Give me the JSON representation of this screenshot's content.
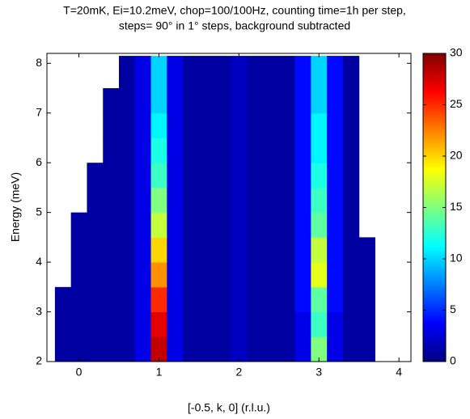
{
  "chart_data": {
    "type": "heatmap",
    "title": [
      "T=20mK, Ei=10.2meV, chop=100/100Hz, counting time=1h per step,",
      "steps= 90° in 1° steps, background subtracted"
    ],
    "x_label": "[-0.5, k, 0] (r.l.u.)",
    "y_label": "Energy (meV)",
    "colormap": "jet",
    "xbins": [
      -0.3,
      -0.1,
      0.1,
      0.3,
      0.5,
      0.7,
      0.9,
      1.1,
      1.3,
      1.5,
      1.7,
      1.9,
      2.1,
      2.3,
      2.5,
      2.7,
      2.9,
      3.1,
      3.3,
      3.5,
      3.7
    ],
    "ybins": [
      2,
      2.5,
      3,
      3.5,
      4,
      4.5,
      5,
      5.5,
      6,
      6.5,
      7,
      7.5,
      8.15
    ],
    "z": [
      [
        1,
        1,
        1,
        1,
        1,
        3,
        28,
        3,
        1,
        1,
        1,
        2,
        1,
        1,
        1,
        3,
        15,
        3,
        1,
        1
      ],
      [
        1,
        1,
        1,
        1,
        1,
        3,
        27,
        3,
        1,
        1,
        1,
        2,
        1,
        1,
        1,
        3,
        13,
        3,
        1,
        1
      ],
      [
        1,
        1,
        1,
        1,
        1,
        3,
        25,
        3,
        1,
        1,
        1,
        2,
        1,
        1,
        1,
        4,
        14,
        4,
        1,
        1
      ],
      [
        null,
        1,
        1,
        1,
        1,
        3,
        22,
        3,
        1,
        1,
        1,
        2,
        1,
        1,
        1,
        4,
        18,
        4,
        1,
        1
      ],
      [
        null,
        1,
        1,
        1,
        1,
        3,
        20,
        3,
        1,
        1,
        1,
        2,
        1,
        1,
        1,
        4,
        17,
        4,
        1,
        1
      ],
      [
        null,
        1,
        1,
        1,
        1,
        3,
        17,
        3,
        1,
        1,
        1,
        2,
        1,
        1,
        1,
        4,
        14,
        4,
        1,
        null
      ],
      [
        null,
        null,
        1,
        1,
        1,
        3,
        15,
        3,
        1,
        1,
        1,
        2,
        1,
        1,
        1,
        4,
        13,
        4,
        1,
        null
      ],
      [
        null,
        null,
        1,
        1,
        1,
        3,
        13,
        3,
        1,
        1,
        1,
        2,
        1,
        1,
        1,
        4,
        12,
        4,
        1,
        null
      ],
      [
        null,
        null,
        null,
        1,
        1,
        3,
        12,
        3,
        1,
        1,
        1,
        2,
        1,
        1,
        1,
        4,
        11,
        4,
        1,
        null
      ],
      [
        null,
        null,
        null,
        1,
        1,
        3,
        11,
        3,
        1,
        1,
        1,
        2,
        1,
        1,
        1,
        4,
        11,
        4,
        1,
        null
      ],
      [
        null,
        null,
        null,
        1,
        1,
        3,
        10,
        3,
        1,
        1,
        1,
        2,
        1,
        1,
        1,
        4,
        10,
        4,
        1,
        null
      ],
      [
        null,
        null,
        null,
        null,
        1,
        3,
        10,
        3,
        1,
        1,
        1,
        2,
        1,
        1,
        1,
        4,
        10,
        4,
        1,
        null
      ]
    ],
    "xlim": [
      -0.4,
      4.15
    ],
    "xticks": [
      0,
      1,
      2,
      3,
      4
    ],
    "ylim": [
      2,
      8.2
    ],
    "yticks": [
      2,
      3,
      4,
      5,
      6,
      7,
      8
    ],
    "zlim": [
      0,
      30
    ],
    "zticks": [
      0,
      5,
      10,
      15,
      20,
      25,
      30
    ]
  }
}
